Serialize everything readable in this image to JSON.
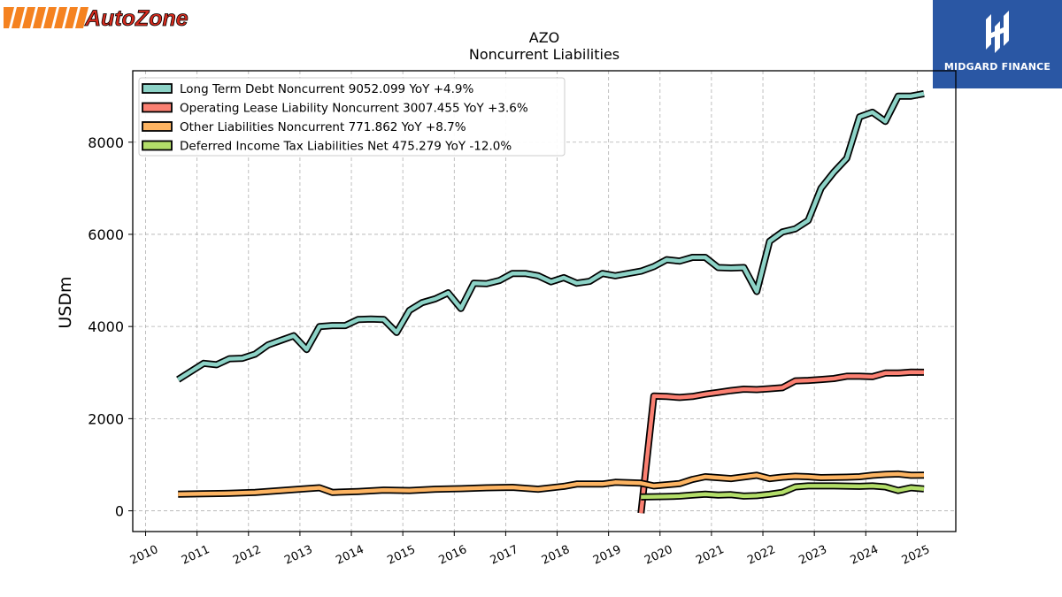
{
  "header": {
    "left_logo_text": "AutoZone",
    "right_logo_text": "MIDGARD FINANCE"
  },
  "colors": {
    "long_term_debt": "#8dd3c7",
    "operating_lease": "#fb8072",
    "other_liabilities": "#fdb462",
    "deferred_tax": "#b3de69",
    "autozone_orange": "#f58220",
    "autozone_red": "#d52b1e",
    "midgard_blue": "#2a57a4"
  },
  "chart_data": {
    "type": "line",
    "title": "AZO",
    "subtitle": "Noncurrent  Liabilities",
    "xlabel": "",
    "ylabel": "USDm",
    "xlim": [
      2009.75,
      2025.75
    ],
    "ylim": [
      -450,
      9550
    ],
    "x_ticks": [
      "2010",
      "2011",
      "2012",
      "2013",
      "2014",
      "2015",
      "2016",
      "2017",
      "2018",
      "2019",
      "2020",
      "2021",
      "2022",
      "2023",
      "2024",
      "2025"
    ],
    "y_ticks": [
      "0",
      "2000",
      "4000",
      "6000",
      "8000"
    ],
    "grid": true,
    "legend_position": "top-left",
    "series": [
      {
        "name": "Long Term Debt Noncurrent  9052.099 YoY +4.9%",
        "color_key": "long_term_debt",
        "points": [
          [
            2010.63,
            2850
          ],
          [
            2011.13,
            3200
          ],
          [
            2011.38,
            3170
          ],
          [
            2011.63,
            3300
          ],
          [
            2011.88,
            3310
          ],
          [
            2012.13,
            3400
          ],
          [
            2012.38,
            3600
          ],
          [
            2012.63,
            3700
          ],
          [
            2012.88,
            3800
          ],
          [
            2013.13,
            3500
          ],
          [
            2013.38,
            4000
          ],
          [
            2013.63,
            4020
          ],
          [
            2013.88,
            4020
          ],
          [
            2014.13,
            4150
          ],
          [
            2014.38,
            4160
          ],
          [
            2014.63,
            4150
          ],
          [
            2014.88,
            3870
          ],
          [
            2015.13,
            4350
          ],
          [
            2015.38,
            4520
          ],
          [
            2015.63,
            4600
          ],
          [
            2015.88,
            4730
          ],
          [
            2016.13,
            4390
          ],
          [
            2016.38,
            4940
          ],
          [
            2016.63,
            4930
          ],
          [
            2016.88,
            5000
          ],
          [
            2017.13,
            5150
          ],
          [
            2017.38,
            5150
          ],
          [
            2017.63,
            5100
          ],
          [
            2017.88,
            4970
          ],
          [
            2018.13,
            5060
          ],
          [
            2018.38,
            4940
          ],
          [
            2018.63,
            4980
          ],
          [
            2018.88,
            5150
          ],
          [
            2019.13,
            5100
          ],
          [
            2019.38,
            5150
          ],
          [
            2019.63,
            5200
          ],
          [
            2019.88,
            5300
          ],
          [
            2020.13,
            5450
          ],
          [
            2020.38,
            5420
          ],
          [
            2020.63,
            5500
          ],
          [
            2020.88,
            5500
          ],
          [
            2021.13,
            5280
          ],
          [
            2021.38,
            5270
          ],
          [
            2021.63,
            5280
          ],
          [
            2021.88,
            4760
          ],
          [
            2022.13,
            5850
          ],
          [
            2022.38,
            6050
          ],
          [
            2022.63,
            6120
          ],
          [
            2022.88,
            6300
          ],
          [
            2023.13,
            7000
          ],
          [
            2023.38,
            7350
          ],
          [
            2023.63,
            7650
          ],
          [
            2023.88,
            8550
          ],
          [
            2024.13,
            8650
          ],
          [
            2024.38,
            8450
          ],
          [
            2024.63,
            9000
          ],
          [
            2024.88,
            9000
          ],
          [
            2025.13,
            9052.099
          ]
        ]
      },
      {
        "name": "Operating Lease Liability Noncurrent  3007.455 YoY +3.6%",
        "color_key": "operating_lease",
        "points": [
          [
            2019.63,
            -50
          ],
          [
            2019.88,
            2490
          ],
          [
            2020.13,
            2480
          ],
          [
            2020.38,
            2460
          ],
          [
            2020.63,
            2480
          ],
          [
            2020.88,
            2530
          ],
          [
            2021.13,
            2570
          ],
          [
            2021.38,
            2610
          ],
          [
            2021.63,
            2640
          ],
          [
            2021.88,
            2630
          ],
          [
            2022.13,
            2650
          ],
          [
            2022.38,
            2670
          ],
          [
            2022.63,
            2820
          ],
          [
            2022.88,
            2830
          ],
          [
            2023.13,
            2850
          ],
          [
            2023.38,
            2870
          ],
          [
            2023.63,
            2920
          ],
          [
            2023.88,
            2920
          ],
          [
            2024.13,
            2910
          ],
          [
            2024.38,
            2990
          ],
          [
            2024.63,
            2990
          ],
          [
            2024.88,
            3010
          ],
          [
            2025.13,
            3007.455
          ]
        ]
      },
      {
        "name": "Other Liabilities Noncurrent  771.862 YoY +8.7%",
        "color_key": "other_liabilities",
        "points": [
          [
            2010.63,
            360
          ],
          [
            2011.13,
            370
          ],
          [
            2011.63,
            380
          ],
          [
            2012.13,
            400
          ],
          [
            2012.63,
            440
          ],
          [
            2013.13,
            480
          ],
          [
            2013.38,
            500
          ],
          [
            2013.63,
            400
          ],
          [
            2014.13,
            420
          ],
          [
            2014.63,
            450
          ],
          [
            2015.13,
            440
          ],
          [
            2015.63,
            470
          ],
          [
            2016.13,
            480
          ],
          [
            2016.63,
            500
          ],
          [
            2017.13,
            510
          ],
          [
            2017.63,
            470
          ],
          [
            2018.13,
            530
          ],
          [
            2018.38,
            580
          ],
          [
            2018.88,
            580
          ],
          [
            2019.13,
            620
          ],
          [
            2019.38,
            610
          ],
          [
            2019.63,
            600
          ],
          [
            2019.88,
            540
          ],
          [
            2020.38,
            590
          ],
          [
            2020.63,
            680
          ],
          [
            2020.88,
            740
          ],
          [
            2021.38,
            700
          ],
          [
            2021.88,
            770
          ],
          [
            2022.13,
            700
          ],
          [
            2022.38,
            730
          ],
          [
            2022.63,
            750
          ],
          [
            2022.88,
            740
          ],
          [
            2023.13,
            720
          ],
          [
            2023.63,
            730
          ],
          [
            2023.88,
            740
          ],
          [
            2024.13,
            770
          ],
          [
            2024.38,
            790
          ],
          [
            2024.63,
            800
          ],
          [
            2024.88,
            770
          ],
          [
            2025.13,
            771.862
          ]
        ]
      },
      {
        "name": "Deferred Income Tax Liabilities Net  475.279 YoY -12.0%",
        "color_key": "deferred_tax",
        "points": [
          [
            2019.63,
            300
          ],
          [
            2020.13,
            310
          ],
          [
            2020.38,
            320
          ],
          [
            2020.63,
            340
          ],
          [
            2020.88,
            360
          ],
          [
            2021.13,
            340
          ],
          [
            2021.38,
            350
          ],
          [
            2021.63,
            320
          ],
          [
            2021.88,
            330
          ],
          [
            2022.13,
            360
          ],
          [
            2022.38,
            400
          ],
          [
            2022.63,
            520
          ],
          [
            2022.88,
            540
          ],
          [
            2023.13,
            540
          ],
          [
            2023.38,
            540
          ],
          [
            2023.88,
            530
          ],
          [
            2024.13,
            540
          ],
          [
            2024.38,
            520
          ],
          [
            2024.63,
            440
          ],
          [
            2024.88,
            500
          ],
          [
            2025.13,
            475.279
          ]
        ]
      }
    ]
  }
}
